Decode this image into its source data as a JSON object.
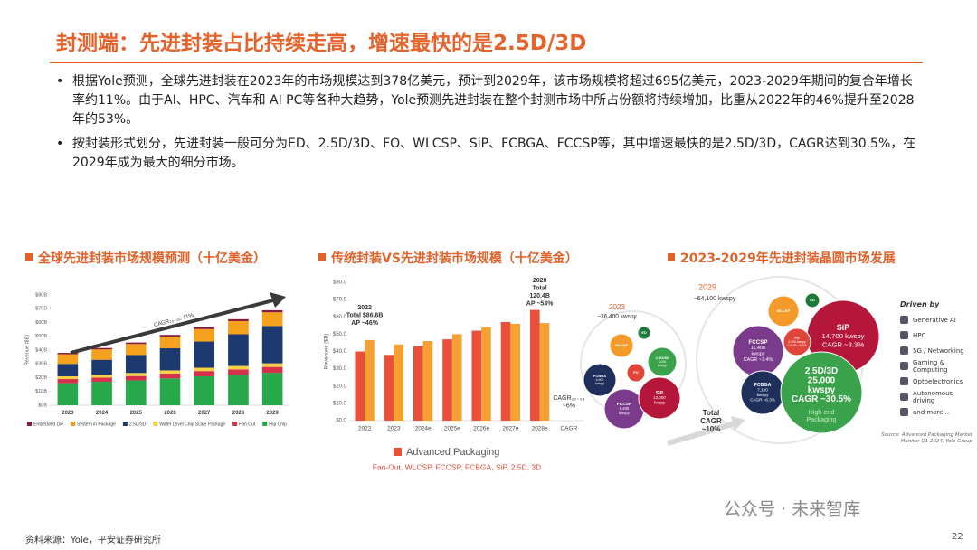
{
  "header": {
    "title": "封测端：先进封装占比持续走高，增速最快的是2.5D/3D"
  },
  "bullets": [
    "根据Yole预测，全球先进封装在2023年的市场规模达到378亿美元，预计到2029年，该市场规模将超过695亿美元，2023-2029年期间的复合年增长率约11%。由于AI、HPC、汽车和 AI PC等各种大趋势，Yole预测先进封装在整个封测市场中所占份额将持续增加，比重从2022年的46%提升至2028年的53%。",
    "按封装形式划分，先进封装一般可分为ED、2.5D/3D、FO、WLCSP、SiP、FCBGA、FCCSP等，其中增速最快的是2.5D/3D，CAGR达到30.5%，在2029年成为最大的细分市场。"
  ],
  "panels": [
    {
      "title": "全球先进封装市场规模预测（十亿美金）",
      "chart_data": {
        "type": "bar",
        "stacked": true,
        "y_label": "Revenue ($B)",
        "annotation": "CAGR₂₃₋₂₉: 11%",
        "categories": [
          "2023",
          "2024",
          "2025",
          "2026",
          "2027",
          "2028",
          "2029"
        ],
        "series": [
          {
            "name": "Embedded Die",
            "color": "#8b1a3a",
            "values": [
              1,
              1,
              1.1,
              1.2,
              1.3,
              1.4,
              1.5
            ]
          },
          {
            "name": "System in Package",
            "color": "#f4a21d",
            "values": [
              7,
              7.5,
              8,
              8.5,
              9,
              9.5,
              10
            ]
          },
          {
            "name": "2.5D/3D",
            "color": "#1c3a70",
            "values": [
              9,
              11,
              13,
              16,
              19,
              23,
              27
            ]
          },
          {
            "name": "Wafer Level Chip Scale Package",
            "color": "#f7d046",
            "values": [
              2,
              2,
              2.2,
              2.3,
              2.4,
              2.5,
              2.6
            ]
          },
          {
            "name": "Fan Out",
            "color": "#d6314a",
            "values": [
              3,
              3,
              3.2,
              3.5,
              3.8,
              4,
              4.3
            ]
          },
          {
            "name": "Flip Chip",
            "color": "#27a84a",
            "values": [
              16,
              17,
              18,
              19.5,
              21,
              22,
              23.5
            ]
          }
        ],
        "ylim": [
          0,
          80
        ],
        "yticks": [
          {
            "value": 0,
            "label": "$0B"
          },
          {
            "value": 10,
            "label": "$10B"
          },
          {
            "value": 20,
            "label": "$20B"
          },
          {
            "value": 30,
            "label": "$30B"
          },
          {
            "value": 40,
            "label": "$40B"
          },
          {
            "value": 50,
            "label": "$50B"
          },
          {
            "value": 60,
            "label": "$60B"
          },
          {
            "value": 70,
            "label": "$70B"
          },
          {
            "value": 80,
            "label": "$80B"
          }
        ],
        "grid": false
      }
    },
    {
      "title": "传统封装VS先进封装市场规模（十亿美金）",
      "chart_data": {
        "type": "bar",
        "stacked": false,
        "y_label": "Revenues ($B)",
        "categories": [
          "2022",
          "2023",
          "2024e",
          "2025e",
          "2026e",
          "2027e",
          "2028e",
          "CAGR"
        ],
        "series": [
          {
            "name": "Advanced Packaging",
            "color": "#e8503a",
            "values": [
              40,
              38,
              43,
              47,
              52,
              57,
              64,
              null
            ]
          },
          {
            "color": "#f5a033",
            "values": [
              46.6,
              44,
              46,
              50,
              54,
              56,
              56.4,
              null
            ]
          }
        ],
        "legend_note": "Fan-Out, WLCSP, FCCSP, FCBGA, SiP, 2.5D, 3D",
        "annotations": [
          [
            "2022",
            "Total $86.6B",
            "AP ~46%"
          ],
          [
            "2028",
            "Total",
            "120.4B",
            "AP ~53%"
          ],
          [
            "CAGR₂₂₋₂₈",
            "~6%"
          ]
        ],
        "ylim": [
          0,
          80
        ],
        "yticks": [
          {
            "value": 0,
            "label": "$0.0"
          },
          {
            "value": 10,
            "label": "$10.0"
          },
          {
            "value": 20,
            "label": "$20.0"
          },
          {
            "value": 30,
            "label": "$30.0"
          },
          {
            "value": 40,
            "label": "$40.0"
          },
          {
            "value": 50,
            "label": "$50.0"
          },
          {
            "value": 60,
            "label": "$60.0"
          },
          {
            "value": 70,
            "label": "$70.0"
          },
          {
            "value": 80,
            "label": "$80.0"
          }
        ],
        "grid": false
      }
    },
    {
      "title": "2023-2029年先进封装晶圆市场发展",
      "diagram": {
        "left": {
          "year": "2023",
          "total": "~36,400 kwspy"
        },
        "right": {
          "year": "2029",
          "total": "~64,100 kwspy"
        },
        "bubbles_2023": [
          {
            "lines": [
              "WLCSP"
            ],
            "color": "#f39a2b"
          },
          {
            "lines": [
              "ED"
            ],
            "color": "#1f7a3a"
          },
          {
            "lines": [
              "2.5D/3D",
              "3,000",
              "kwspy"
            ],
            "color": "#3aa24a"
          },
          {
            "lines": [
              "FO"
            ],
            "color": "#e0453a"
          },
          {
            "lines": [
              "FCBGA",
              "4,900",
              "kwspy"
            ],
            "color": "#1f2f5c"
          },
          {
            "lines": [
              "FCCSP",
              "9,400",
              "kwspy"
            ],
            "color": "#7b3b8c"
          },
          {
            "lines": [
              "SiP",
              "12,000",
              "kwspy"
            ],
            "color": "#b5173a"
          }
        ],
        "bubbles_2029": [
          {
            "lines": [
              "WLCSP"
            ],
            "color": "#f39a2b"
          },
          {
            "lines": [
              "ED"
            ],
            "color": "#1f7a3a"
          },
          {
            "lines": [
              "SiP",
              "14,700 kwspy",
              "CAGR ~3.3%"
            ],
            "color": "#b5173a"
          },
          {
            "lines": [
              "FCCSP",
              "11,400",
              "kwspy",
              "CAGR ~3.4%"
            ],
            "color": "#7b3b8c"
          },
          {
            "lines": [
              "FO",
              "2,200 kwspy",
              "CAGR ~3.2%"
            ],
            "color": "#e0453a"
          },
          {
            "lines": [
              "FCBGA",
              "7,100",
              "kwspy",
              "CAGR ~6.3%"
            ],
            "color": "#1f2f5c"
          },
          {
            "lines": [
              "2.5D/3D",
              "25,000",
              "kwspy",
              "CAGR ~30.5%"
            ],
            "color": "#3aa24a"
          }
        ],
        "high_end": [
          "High-end",
          "Packaging"
        ],
        "cagr": [
          "Total",
          "CAGR",
          "~10%"
        ],
        "drivers_title": "Driven by",
        "drivers": [
          "Generative AI",
          "HPC",
          "5G / Networking",
          "Gaming & Computing",
          "Optoelectronics",
          "Autonomous driving",
          "and more..."
        ],
        "source": "Source: Advanced Packaging Market Monitor Q1 2024, Yole Group"
      }
    }
  ],
  "watermark": "公众号 · 未来智库",
  "footer": {
    "source": "资料来源：Yole，平安证券研究所",
    "page": "22"
  }
}
